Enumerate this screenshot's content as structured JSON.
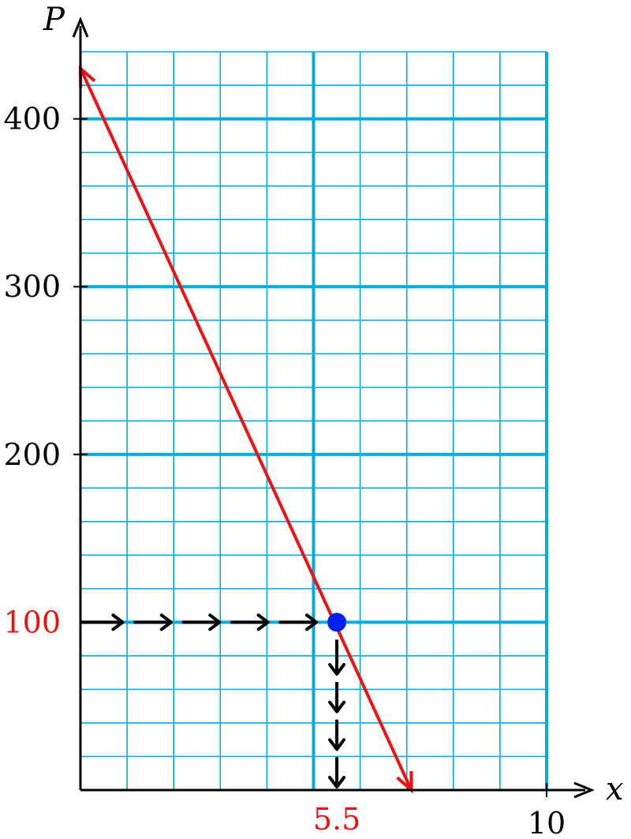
{
  "chart_data": {
    "type": "line",
    "xlabel": "x",
    "ylabel": "P",
    "xlim": [
      0,
      10
    ],
    "ylim": [
      0,
      440
    ],
    "x_ticks": [
      {
        "value": 10,
        "label": "10"
      }
    ],
    "y_ticks": [
      {
        "value": 200,
        "label": "200"
      },
      {
        "value": 300,
        "label": "300"
      },
      {
        "value": 400,
        "label": "400"
      }
    ],
    "grid": {
      "x_minor_step": 1,
      "x_major": [
        5,
        10
      ],
      "y_minor_step": 20,
      "y_major_step": 100
    },
    "series": [
      {
        "x": [
          0,
          7.1
        ],
        "y": [
          430,
          0
        ],
        "color": "#ee1111"
      }
    ],
    "highlight": {
      "x": 5.5,
      "y": 100,
      "x_label": "5.5",
      "y_label": "100",
      "label_color": "#ee1111",
      "point_color": "#0022ee",
      "guide_color": "#000000"
    },
    "colors": {
      "grid": "#00aadd",
      "axis": "#000000"
    }
  }
}
